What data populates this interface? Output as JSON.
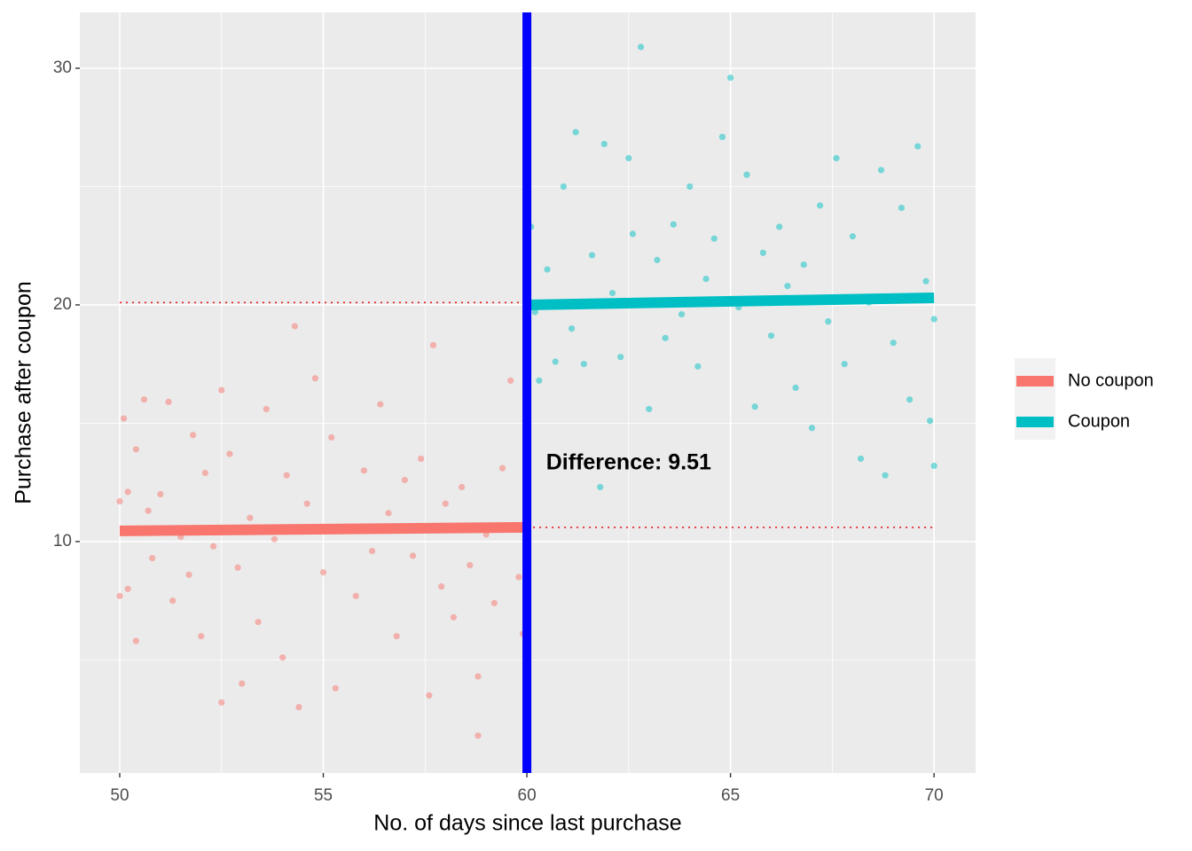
{
  "chart_data": {
    "type": "scatter",
    "x_label": "No. of days since last purchase",
    "y_label": "Purchase after coupon",
    "xlim": [
      49.02,
      71.02
    ],
    "ylim": [
      0.22,
      32.36
    ],
    "xticks": [
      50,
      55,
      60,
      65,
      70
    ],
    "yticks": [
      10,
      20,
      30
    ],
    "minor_xticks": [
      52.5,
      57.5,
      62.5,
      67.5
    ],
    "minor_yticks": [
      5,
      15,
      25
    ],
    "grid": true,
    "legend": "right",
    "series": [
      {
        "name": "No coupon",
        "color": "#F8766D",
        "x": [
          50.0,
          50.0,
          50.1,
          50.2,
          50.2,
          50.4,
          50.4,
          50.6,
          50.7,
          50.8,
          51.0,
          51.2,
          51.3,
          51.5,
          51.7,
          51.8,
          52.0,
          52.1,
          52.3,
          52.5,
          52.5,
          52.7,
          52.9,
          53.0,
          53.2,
          53.4,
          53.6,
          53.8,
          54.0,
          54.1,
          54.3,
          54.4,
          54.6,
          54.8,
          55.0,
          55.2,
          55.3,
          55.6,
          55.8,
          56.0,
          56.2,
          56.4,
          56.6,
          56.8,
          57.0,
          57.2,
          57.4,
          57.6,
          57.7,
          57.9,
          58.0,
          58.2,
          58.4,
          58.6,
          58.8,
          58.8,
          59.0,
          59.2,
          59.4,
          59.6,
          59.8,
          59.9
        ],
        "values": [
          11.7,
          7.7,
          15.2,
          12.1,
          8.0,
          13.9,
          5.8,
          16.0,
          11.3,
          9.3,
          12.0,
          15.9,
          7.5,
          10.2,
          8.6,
          14.5,
          6.0,
          12.9,
          9.8,
          3.2,
          16.4,
          13.7,
          8.9,
          4.0,
          11.0,
          6.6,
          15.6,
          10.1,
          5.1,
          12.8,
          19.1,
          3.0,
          11.6,
          16.9,
          8.7,
          14.4,
          3.8,
          10.6,
          7.7,
          13.0,
          9.6,
          15.8,
          11.2,
          6.0,
          12.6,
          9.4,
          13.5,
          3.5,
          18.3,
          8.1,
          11.6,
          6.8,
          12.3,
          9.0,
          4.3,
          1.8,
          10.3,
          7.4,
          13.1,
          16.8,
          8.5,
          6.1
        ],
        "fit": {
          "x": [
            50,
            60
          ],
          "values": [
            10.45,
            10.6
          ]
        }
      },
      {
        "name": "Coupon",
        "color": "#00BFC4",
        "x": [
          60.0,
          60.0,
          60.1,
          60.2,
          60.3,
          60.5,
          60.7,
          60.9,
          61.1,
          61.2,
          61.4,
          61.6,
          61.8,
          61.9,
          62.1,
          62.3,
          62.5,
          62.6,
          62.8,
          63.0,
          63.2,
          63.4,
          63.6,
          63.8,
          64.0,
          64.2,
          64.4,
          64.6,
          64.8,
          65.0,
          65.2,
          65.4,
          65.6,
          65.8,
          66.0,
          66.2,
          66.4,
          66.6,
          66.8,
          67.0,
          67.2,
          67.4,
          67.6,
          67.8,
          68.0,
          68.2,
          68.4,
          68.7,
          68.8,
          69.0,
          69.2,
          69.4,
          69.6,
          69.8,
          69.9,
          70.0,
          70.0
        ],
        "values": [
          12.4,
          7.9,
          23.3,
          19.7,
          16.8,
          21.5,
          17.6,
          25.0,
          19.0,
          27.3,
          17.5,
          22.1,
          12.3,
          26.8,
          20.5,
          17.8,
          26.2,
          23.0,
          30.9,
          15.6,
          21.9,
          18.6,
          23.4,
          19.6,
          25.0,
          17.4,
          21.1,
          22.8,
          27.1,
          29.6,
          19.9,
          25.5,
          15.7,
          22.2,
          18.7,
          23.3,
          20.8,
          16.5,
          21.7,
          14.8,
          24.2,
          19.3,
          26.2,
          17.5,
          22.9,
          13.5,
          20.1,
          25.7,
          12.8,
          18.4,
          24.1,
          16.0,
          26.7,
          21.0,
          15.1,
          19.4,
          13.2
        ],
        "fit": {
          "x": [
            60,
            70
          ],
          "values": [
            20.0,
            20.3
          ]
        }
      }
    ],
    "cutoff": 60,
    "cutoff_color": "#0000FF",
    "reference_lines": [
      {
        "value": 20.1,
        "x": [
          50,
          60
        ]
      },
      {
        "value": 10.6,
        "x": [
          60,
          70
        ]
      }
    ],
    "reference_color": "#E41A1C",
    "annotation": {
      "text": "Difference: 9.51",
      "x": 62.5,
      "y": 13.3
    }
  }
}
